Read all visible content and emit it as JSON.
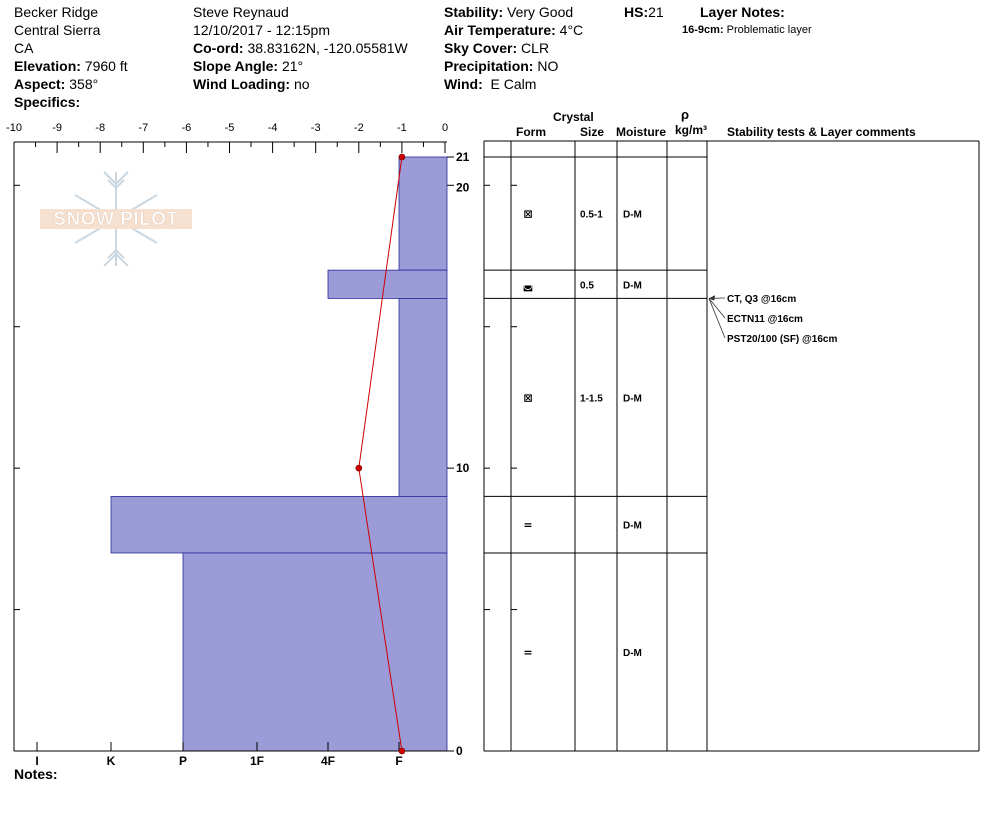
{
  "header": {
    "location": "Becker Ridge",
    "range": "Central Sierra",
    "state": "CA",
    "elevation_label": "Elevation:",
    "elevation_value": "7960 ft",
    "aspect_label": "Aspect:",
    "aspect_value": "358°",
    "specifics_label": "Specifics:",
    "observer": "Steve Reynaud",
    "datetime": "12/10/2017 - 12:15pm",
    "coord_label": "Co-ord:",
    "coord_value": "38.83162N, -120.05581W",
    "slope_label": "Slope Angle:",
    "slope_value": "21°",
    "wind_loading_label": "Wind Loading:",
    "wind_loading_value": "no",
    "stability_label": "Stability:",
    "stability_value": "Very Good",
    "air_temp_label": "Air Temperature:",
    "air_temp_value": "4°C",
    "sky_label": "Sky Cover:",
    "sky_value": "CLR",
    "precip_label": "Precipitation:",
    "precip_value": "NO",
    "wind_label": "Wind:",
    "wind_value": "E Calm",
    "hs_label": "HS:",
    "hs_value": "21",
    "layer_notes_label": "Layer Notes:",
    "layer_note_range": "16-9cm:",
    "layer_note_text": "Problematic layer"
  },
  "notes_label": "Notes:",
  "logo_text": "SNOW PILOT",
  "table": {
    "crystal_header": "Crystal",
    "form_header": "Form",
    "size_header": "Size",
    "moisture_header": "Moisture",
    "density_symbol": "ρ",
    "density_units": "kg/m³",
    "comments_header": "Stability tests & Layer comments",
    "layers": [
      {
        "top": 21,
        "bottom": 17,
        "form": "⊠",
        "size": "0.5-1",
        "moisture": "D-M"
      },
      {
        "top": 17,
        "bottom": 16,
        "form": "◛",
        "size": "0.5",
        "moisture": "D-M"
      },
      {
        "top": 16,
        "bottom": 9,
        "form": "⊠",
        "size": "1-1.5",
        "moisture": "D-M"
      },
      {
        "top": 9,
        "bottom": 7,
        "form": "=",
        "size": "",
        "moisture": "D-M"
      },
      {
        "top": 7,
        "bottom": 0,
        "form": "=",
        "size": "",
        "moisture": "D-M"
      }
    ],
    "tests": [
      {
        "text": "CT, Q3 @16cm",
        "depth": 16
      },
      {
        "text": "ECTN11 @16cm",
        "depth": 16
      },
      {
        "text": "PST20/100 (SF) @16cm",
        "depth": 16
      }
    ]
  },
  "chart_data": {
    "type": "bar",
    "title": "",
    "top_axis": {
      "label": "",
      "range": [
        -10,
        0
      ],
      "ticks": [
        -10,
        -9,
        -8,
        -7,
        -6,
        -5,
        -4,
        -3,
        -2,
        -1,
        0
      ]
    },
    "height_axis": {
      "label": "",
      "range": [
        0,
        21
      ],
      "tick_labels": [
        0,
        10,
        20,
        21
      ]
    },
    "hardness_axis": {
      "labels": [
        "I",
        "K",
        "P",
        "1F",
        "4F",
        "F"
      ]
    },
    "hardness_layers": [
      {
        "top": 21,
        "bottom": 17,
        "hardness": "F"
      },
      {
        "top": 17,
        "bottom": 16,
        "hardness": "4F"
      },
      {
        "top": 16,
        "bottom": 9,
        "hardness": "F"
      },
      {
        "top": 9,
        "bottom": 7,
        "hardness": "K"
      },
      {
        "top": 7,
        "bottom": 0,
        "hardness": "P"
      }
    ],
    "temperature_profile": [
      {
        "height": 21,
        "temp": -1
      },
      {
        "height": 10,
        "temp": -2
      },
      {
        "height": 0,
        "temp": -1
      }
    ],
    "colors": {
      "bars": "#9b9bd8",
      "bar_edge": "#2a2a9a",
      "temp_line": "#cc0000",
      "temp_point": "#cc0000"
    }
  }
}
